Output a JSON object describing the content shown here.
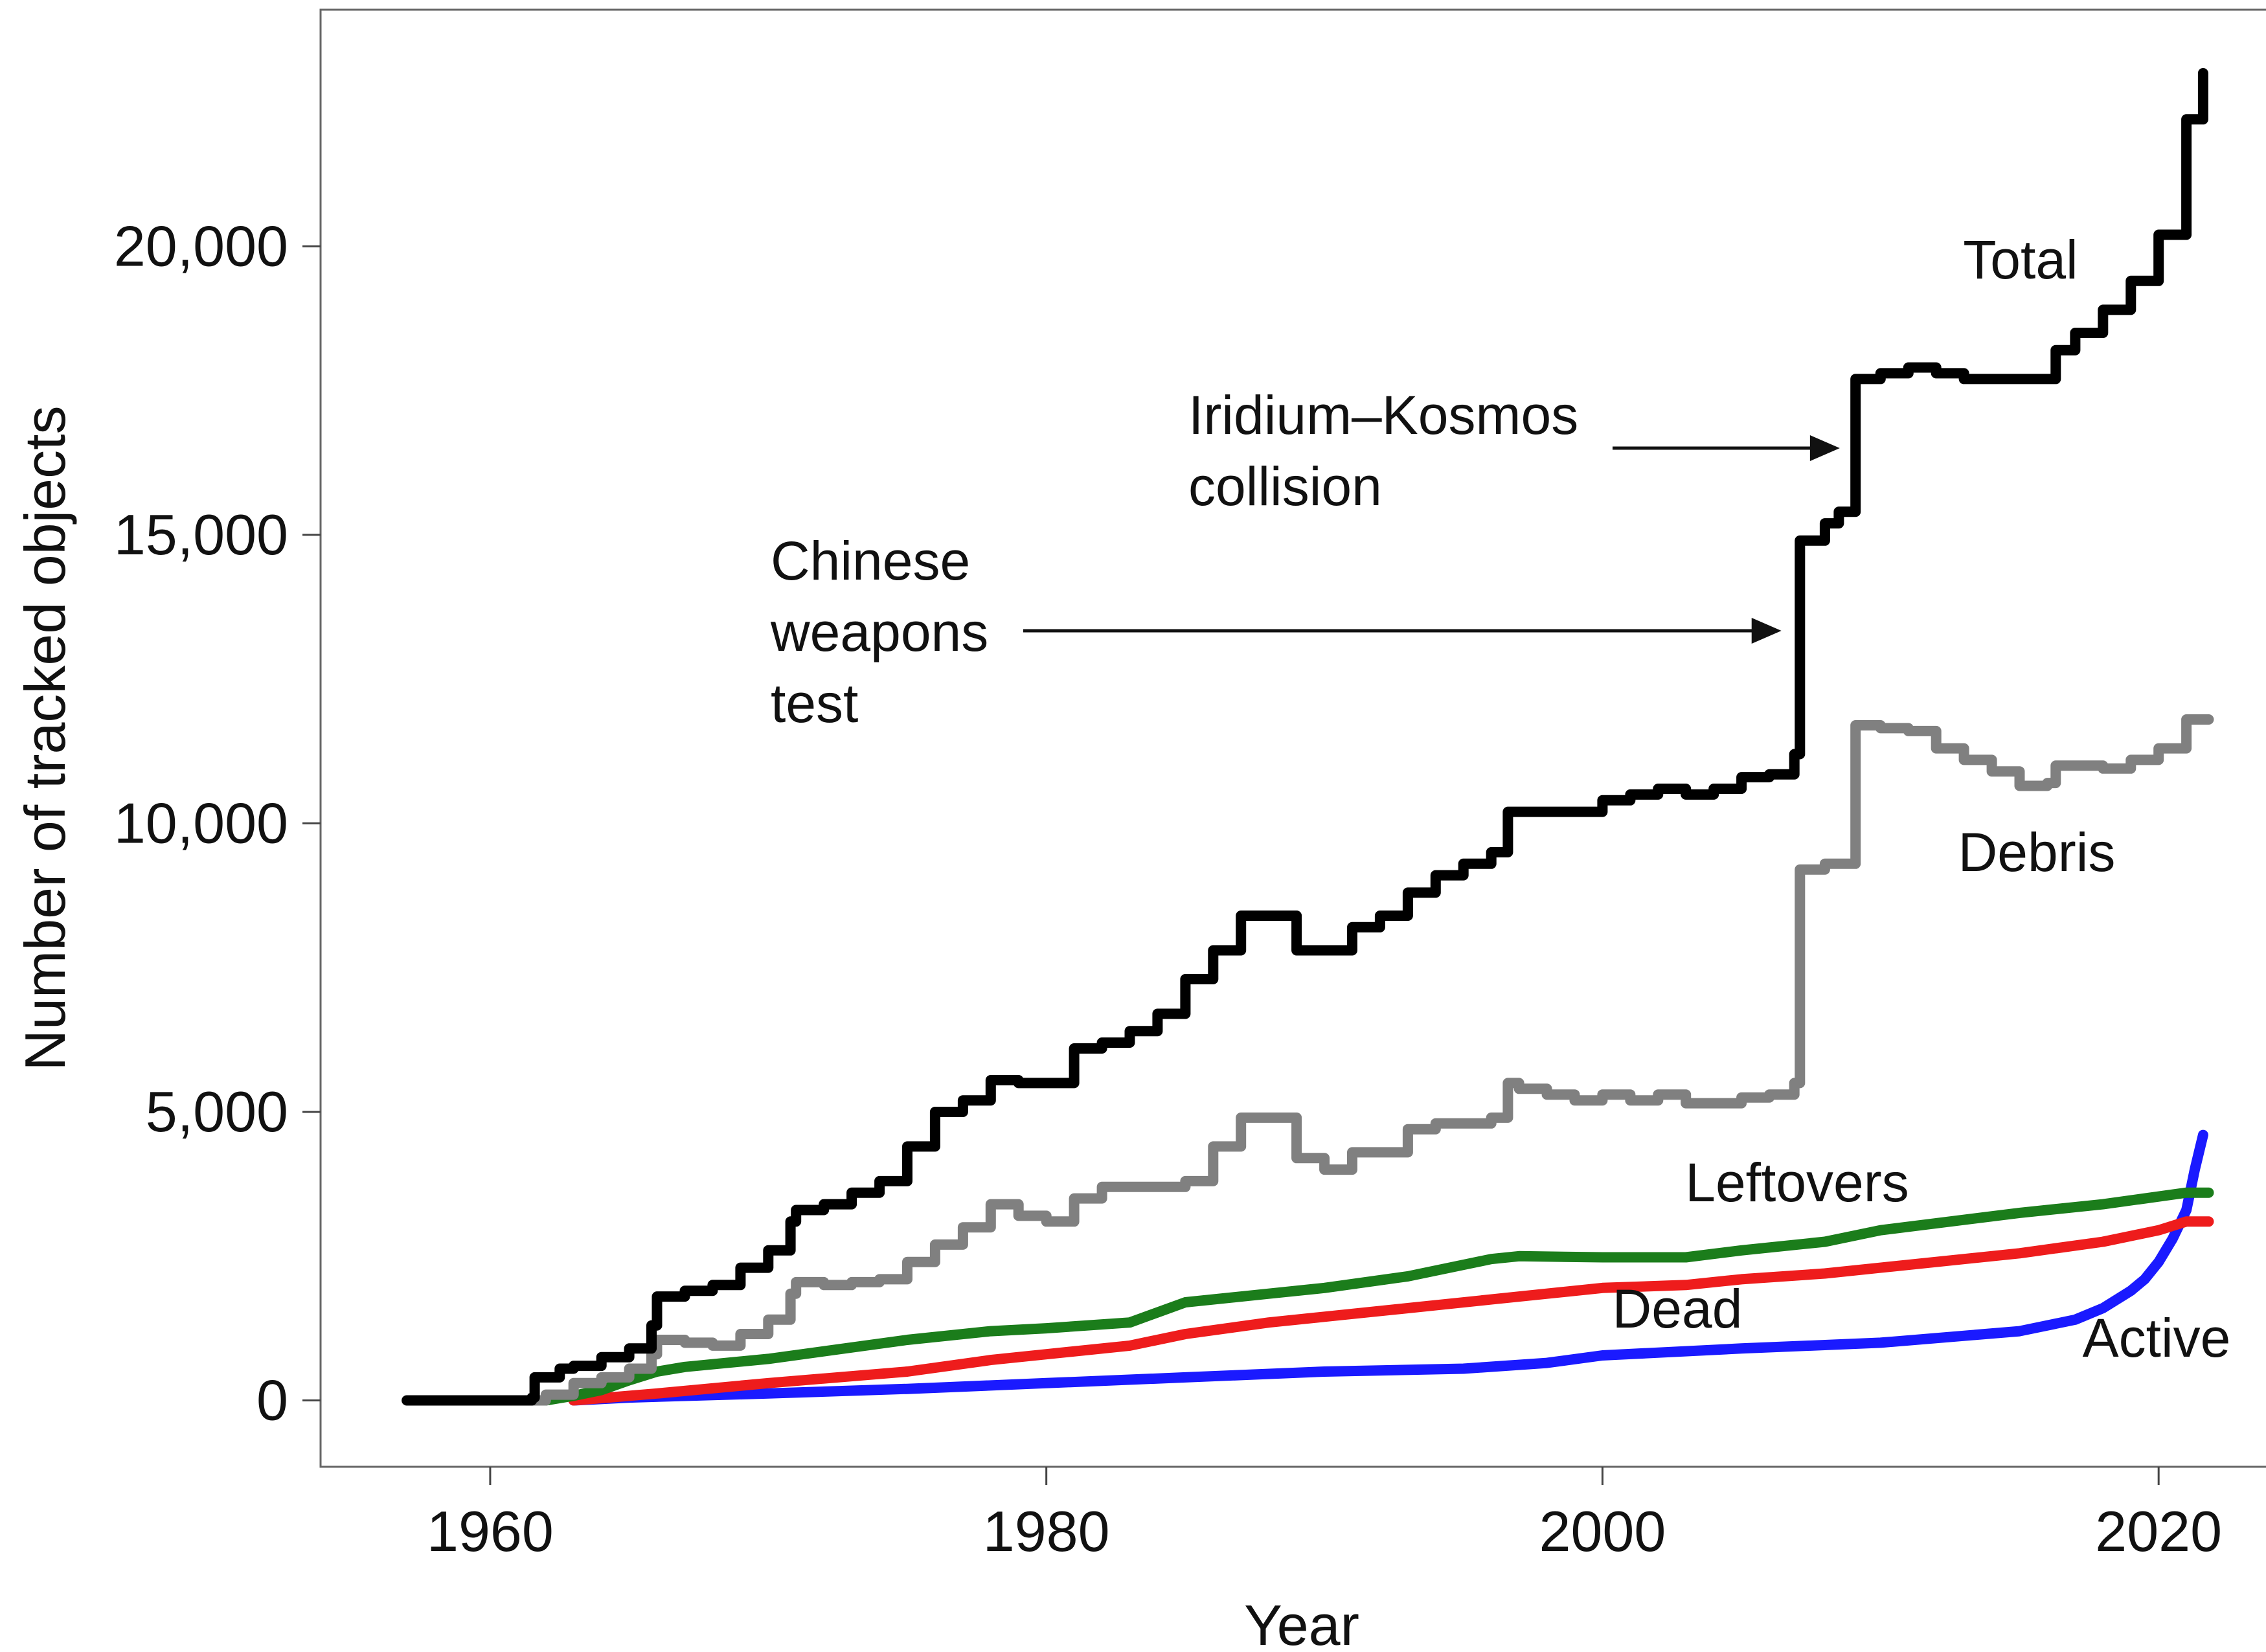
{
  "chart_data": {
    "type": "line",
    "title": "",
    "xlabel": "Year",
    "ylabel": "Number of tracked objects",
    "xlim": [
      1953.9,
      2024.7
    ],
    "ylim": [
      -1150,
      24100
    ],
    "xticks": [
      1960,
      1980,
      2000,
      2020
    ],
    "xtick_labels": [
      "1960",
      "1980",
      "2000",
      "2020"
    ],
    "yticks": [
      0,
      5000,
      10000,
      15000,
      20000
    ],
    "ytick_labels": [
      "0",
      "5,000",
      "10,000",
      "15,000",
      "20,000"
    ],
    "grid": false,
    "legend": "none (series labelled directly on the plot)",
    "series": [
      {
        "name": "Total",
        "color": "#000000",
        "step": true,
        "x": [
          1957,
          1958,
          1959,
          1960,
          1961.5,
          1961.6,
          1962.5,
          1963,
          1964,
          1965,
          1965.8,
          1966,
          1967,
          1968,
          1969,
          1970,
          1970.8,
          1971,
          1972,
          1973,
          1974,
          1975,
          1976,
          1977,
          1978,
          1979,
          1980,
          1981,
          1982,
          1983,
          1984,
          1985,
          1986,
          1987,
          1988,
          1989,
          1990,
          1991,
          1992,
          1993,
          1994,
          1995,
          1996,
          1996.6,
          1997,
          1998,
          1999,
          2000,
          2001,
          2002,
          2003,
          2004,
          2005,
          2006,
          2006.9,
          2007.1,
          2008,
          2008.5,
          2009.1,
          2010,
          2011,
          2012,
          2013,
          2014,
          2015,
          2016,
          2016.3,
          2017,
          2018,
          2019,
          2020,
          2021,
          2021.6
        ],
        "values": [
          0,
          0,
          0,
          0,
          50,
          400,
          550,
          600,
          750,
          900,
          1300,
          1800,
          1900,
          2000,
          2300,
          2600,
          3100,
          3300,
          3400,
          3600,
          3800,
          4400,
          5000,
          5200,
          5550,
          5500,
          5500,
          6100,
          6200,
          6400,
          6700,
          7300,
          7800,
          8400,
          8400,
          7800,
          7800,
          8200,
          8400,
          8800,
          9100,
          9300,
          9500,
          10200,
          10200,
          10200,
          10200,
          10400,
          10500,
          10600,
          10500,
          10600,
          10800,
          10850,
          11200,
          14900,
          15200,
          15400,
          17700,
          17800,
          17900,
          17800,
          17700,
          17700,
          17700,
          17700,
          18200,
          18500,
          18900,
          19400,
          20200,
          22200,
          23000
        ]
      },
      {
        "name": "Debris",
        "color": "#808080",
        "step": true,
        "x": [
          1961.5,
          1962,
          1963,
          1964,
          1965,
          1965.8,
          1966,
          1967,
          1968,
          1969,
          1970,
          1970.8,
          1971,
          1972,
          1973,
          1974,
          1975,
          1976,
          1977,
          1978,
          1979,
          1980,
          1981,
          1982,
          1983,
          1984,
          1985,
          1986,
          1987,
          1988,
          1989,
          1990,
          1991,
          1992,
          1993,
          1994,
          1995,
          1996,
          1996.6,
          1997,
          1998,
          1999,
          2000,
          2001,
          2002,
          2003,
          2004,
          2005,
          2006,
          2006.9,
          2007.1,
          2008,
          2008.5,
          2009.1,
          2010,
          2011,
          2012,
          2013,
          2014,
          2015,
          2016,
          2016.3,
          2017,
          2018,
          2019,
          2020,
          2021,
          2021.8
        ],
        "values": [
          0,
          100,
          300,
          400,
          550,
          800,
          1050,
          1000,
          950,
          1150,
          1400,
          1850,
          2050,
          2000,
          2050,
          2100,
          2400,
          2700,
          3000,
          3400,
          3200,
          3100,
          3500,
          3700,
          3700,
          3700,
          3800,
          4400,
          4900,
          4900,
          4200,
          4000,
          4300,
          4300,
          4700,
          4800,
          4800,
          4900,
          5500,
          5400,
          5300,
          5200,
          5300,
          5200,
          5300,
          5150,
          5150,
          5250,
          5300,
          5500,
          9200,
          9300,
          9300,
          11700,
          11650,
          11600,
          11300,
          11100,
          10900,
          10650,
          10700,
          11000,
          11000,
          10950,
          11100,
          11300,
          11800,
          11800
        ]
      },
      {
        "name": "Leftovers",
        "color": "#1b7d1b",
        "x": [
          1962,
          1963,
          1964,
          1965,
          1966,
          1967,
          1970,
          1975,
          1978,
          1980,
          1983,
          1985,
          1988,
          1990,
          1993,
          1996,
          1997,
          2000,
          2003,
          2005,
          2008,
          2010,
          2015,
          2018,
          2021,
          2021.8
        ],
        "values": [
          0,
          80,
          180,
          350,
          500,
          580,
          720,
          1050,
          1200,
          1250,
          1350,
          1700,
          1850,
          1950,
          2150,
          2450,
          2500,
          2480,
          2480,
          2600,
          2750,
          2950,
          3250,
          3400,
          3600,
          3600
        ]
      },
      {
        "name": "Dead",
        "color": "#ee1c1c",
        "x": [
          1963,
          1964,
          1966,
          1970,
          1975,
          1978,
          1980,
          1983,
          1985,
          1988,
          1990,
          1993,
          1996,
          2000,
          2003,
          2005,
          2008,
          2010,
          2015,
          2018,
          2020,
          2021,
          2021.8
        ],
        "values": [
          0,
          40,
          120,
          300,
          500,
          700,
          800,
          950,
          1150,
          1350,
          1450,
          1600,
          1750,
          1950,
          2000,
          2100,
          2200,
          2300,
          2550,
          2750,
          2950,
          3100,
          3100
        ]
      },
      {
        "name": "Active",
        "color": "#1a1aff",
        "x": [
          1963,
          1965,
          1970,
          1975,
          1980,
          1985,
          1990,
          1995,
          1998,
          2000,
          2005,
          2010,
          2015,
          2017,
          2018,
          2019,
          2019.5,
          2020,
          2020.5,
          2021,
          2021.3,
          2021.6
        ],
        "values": [
          0,
          50,
          120,
          200,
          300,
          400,
          500,
          550,
          650,
          780,
          900,
          1000,
          1200,
          1400,
          1600,
          1900,
          2100,
          2400,
          2800,
          3300,
          4000,
          4600
        ]
      }
    ],
    "series_labels": [
      {
        "name": "Total",
        "text": "Total"
      },
      {
        "name": "Debris",
        "text": "Debris"
      },
      {
        "name": "Leftovers",
        "text": "Leftovers"
      },
      {
        "name": "Dead",
        "text": "Dead"
      },
      {
        "name": "Active",
        "text": "Active"
      }
    ],
    "annotations": [
      {
        "lines": [
          "Iridium–Kosmos",
          "collision"
        ],
        "arrow_to": {
          "x": 2009,
          "y": 16500
        }
      },
      {
        "lines": [
          "Chinese",
          "weapons",
          "test"
        ],
        "arrow_to": {
          "x": 2006.9,
          "y": 13400
        }
      }
    ]
  }
}
